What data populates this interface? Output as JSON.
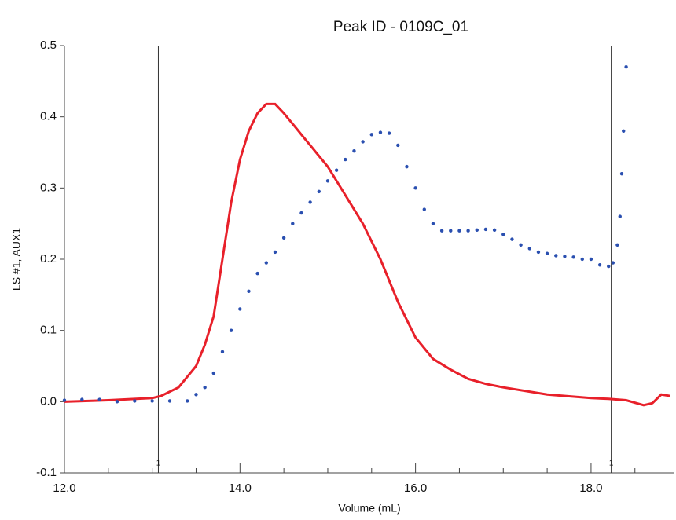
{
  "chart_data": {
    "type": "scatter",
    "title": "Peak ID - 0109C_01",
    "xlabel": "Volume (mL)",
    "ylabel": "LS #1, AUX1",
    "xlim": [
      12,
      18.95
    ],
    "ylim": [
      -0.1,
      0.5
    ],
    "xticks": [
      {
        "value": 12,
        "label": "12.0"
      },
      {
        "value": 14,
        "label": "14.0"
      },
      {
        "value": 16,
        "label": "16.0"
      },
      {
        "value": 18,
        "label": "18.0"
      }
    ],
    "xminorticks": [
      12.5,
      13,
      13.5,
      14.5,
      15,
      15.5,
      16.5,
      17,
      17.5,
      18.5
    ],
    "yticks": [
      -0.1,
      {
        "value": 0,
        "label": "0.0"
      },
      0.1,
      0.2,
      0.3,
      0.4,
      0.5
    ],
    "markers": [
      {
        "x": 13.07,
        "label": "1"
      },
      {
        "x": 18.23,
        "label": "1"
      }
    ],
    "series": [
      {
        "color": "#e8202a",
        "style": "line",
        "x": [
          12.0,
          12.5,
          13.0,
          13.1,
          13.3,
          13.5,
          13.6,
          13.7,
          13.8,
          13.9,
          14.0,
          14.1,
          14.2,
          14.3,
          14.4,
          14.5,
          14.6,
          14.8,
          15.0,
          15.2,
          15.4,
          15.6,
          15.8,
          16.0,
          16.2,
          16.4,
          16.6,
          16.8,
          17.0,
          17.5,
          18.0,
          18.2,
          18.4,
          18.6,
          18.7,
          18.8,
          18.9
        ],
        "values": [
          0.0,
          0.002,
          0.005,
          0.008,
          0.02,
          0.05,
          0.08,
          0.12,
          0.2,
          0.28,
          0.34,
          0.38,
          0.405,
          0.418,
          0.418,
          0.405,
          0.39,
          0.36,
          0.33,
          0.29,
          0.25,
          0.2,
          0.14,
          0.09,
          0.06,
          0.045,
          0.032,
          0.025,
          0.02,
          0.01,
          0.005,
          0.004,
          0.002,
          -0.005,
          -0.002,
          0.01,
          0.008
        ]
      },
      {
        "color": "#2a4fb0",
        "style": "dots",
        "x": [
          12.0,
          12.2,
          12.4,
          12.6,
          12.8,
          13.0,
          13.2,
          13.4,
          13.5,
          13.6,
          13.7,
          13.8,
          13.9,
          14.0,
          14.1,
          14.2,
          14.3,
          14.4,
          14.5,
          14.6,
          14.7,
          14.8,
          14.9,
          15.0,
          15.1,
          15.2,
          15.3,
          15.4,
          15.5,
          15.6,
          15.7,
          15.8,
          15.9,
          16.0,
          16.1,
          16.2,
          16.3,
          16.4,
          16.5,
          16.6,
          16.7,
          16.8,
          16.9,
          17.0,
          17.1,
          17.2,
          17.3,
          17.4,
          17.5,
          17.6,
          17.7,
          17.8,
          17.9,
          18.0,
          18.1,
          18.2,
          18.25,
          18.3,
          18.33,
          18.35,
          18.37,
          18.4
        ],
        "values": [
          0.002,
          0.003,
          0.003,
          0.0,
          0.001,
          0.001,
          0.001,
          0.001,
          0.01,
          0.02,
          0.04,
          0.07,
          0.1,
          0.13,
          0.155,
          0.18,
          0.195,
          0.21,
          0.23,
          0.25,
          0.265,
          0.28,
          0.295,
          0.31,
          0.325,
          0.34,
          0.352,
          0.365,
          0.375,
          0.378,
          0.377,
          0.36,
          0.33,
          0.3,
          0.27,
          0.25,
          0.24,
          0.24,
          0.24,
          0.24,
          0.241,
          0.242,
          0.241,
          0.235,
          0.228,
          0.22,
          0.215,
          0.21,
          0.208,
          0.205,
          0.204,
          0.203,
          0.2,
          0.2,
          0.192,
          0.19,
          0.195,
          0.22,
          0.26,
          0.32,
          0.38,
          0.47
        ]
      }
    ]
  }
}
